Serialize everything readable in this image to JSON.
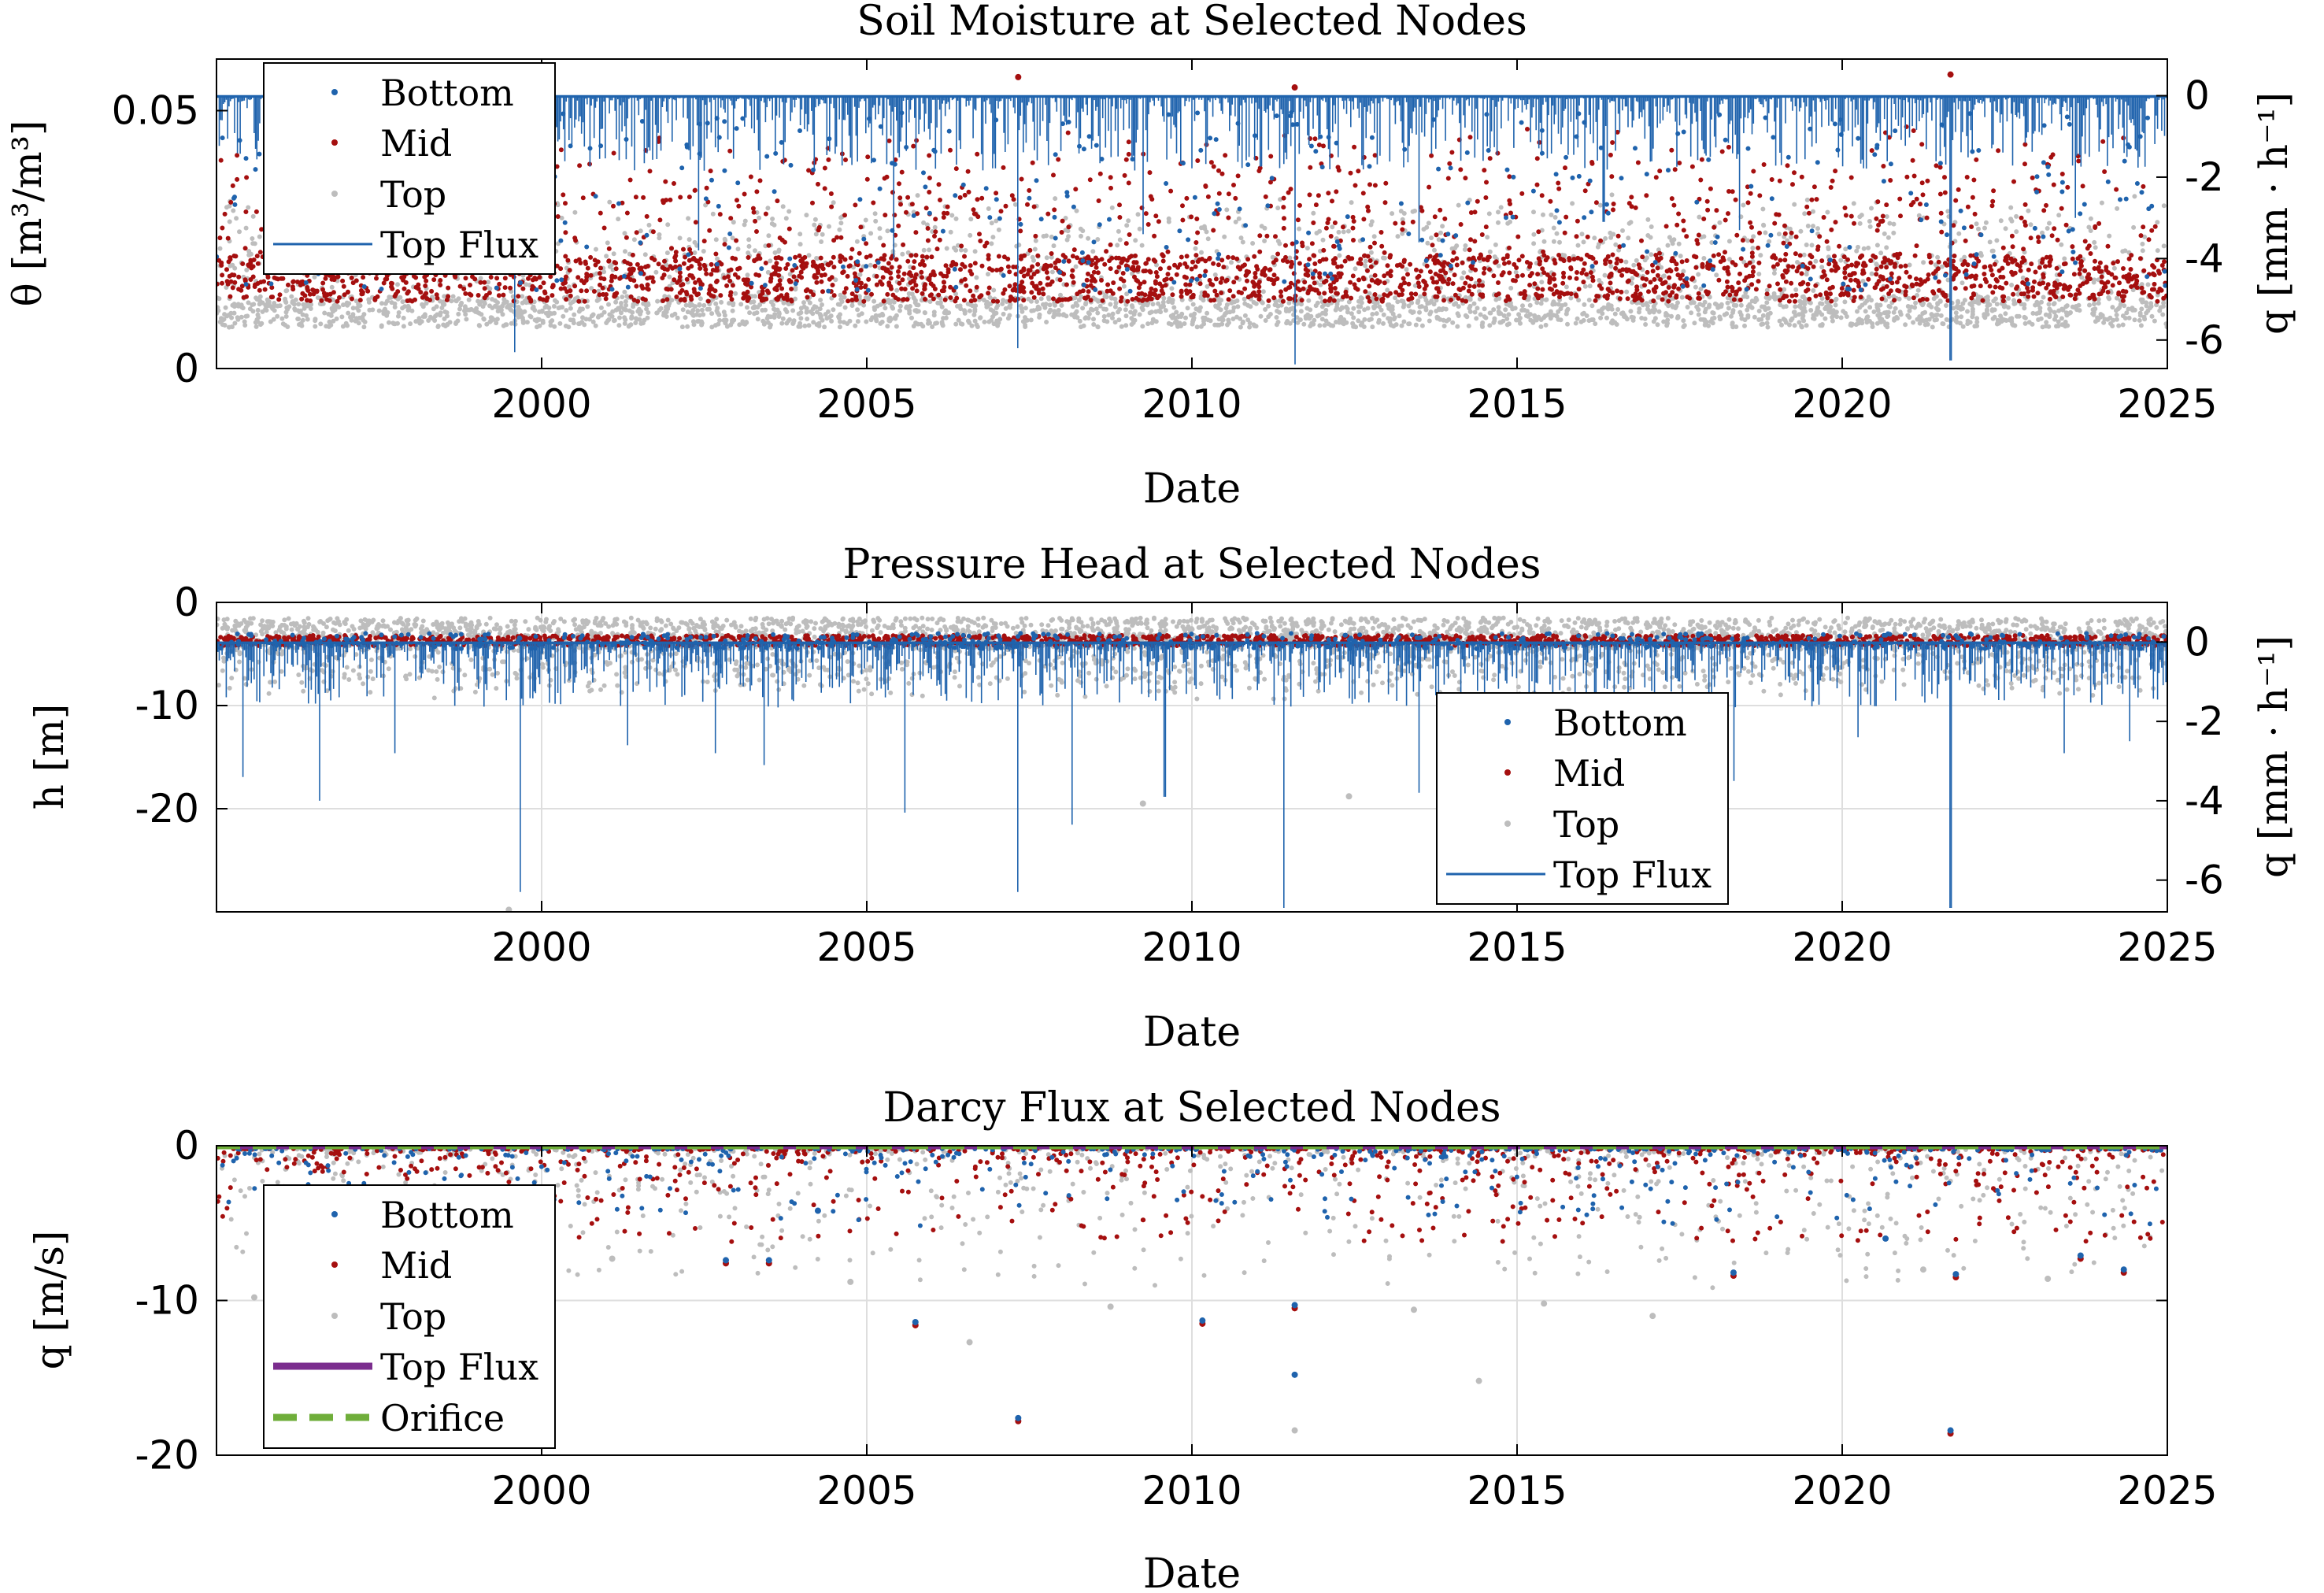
{
  "colors": {
    "bottom": "#1f63ad",
    "mid": "#a50f0f",
    "top": "#bdbdbd",
    "top_flux_line": "#1f63ad",
    "top_flux_thick": "#7b2d8e",
    "orifice": "#6fae3a",
    "grid": "#dedede",
    "axis": "#000000"
  },
  "chart_data": [
    {
      "type": "scatter",
      "title": "Soil Moisture at Selected Nodes",
      "xlabel": "Date",
      "ylabel": "θ [m³/m³]",
      "ylabel_right": "q [mm · h⁻¹]",
      "xlim": [
        "1995-01-01",
        "2025-01-01"
      ],
      "ylim": [
        0,
        0.06
      ],
      "ylim_right": [
        -6.7,
        0.9
      ],
      "x_ticks": [
        "2000",
        "2005",
        "2010",
        "2015",
        "2020",
        "2025"
      ],
      "y_ticks": [
        "0",
        "0.05"
      ],
      "y_ticks_right": [
        "0",
        "-2",
        "-4",
        "-6"
      ],
      "grid": false,
      "legend_position": "top-left",
      "legend": [
        "Bottom",
        "Mid",
        "Top",
        "Top Flux"
      ],
      "series": [
        {
          "name": "Bottom",
          "marker": "dot",
          "typical_range": [
            0.01,
            0.052
          ]
        },
        {
          "name": "Mid",
          "marker": "dot",
          "typical_range": [
            0.012,
            0.055
          ],
          "peaks": [
            [
              "2007-05-01",
              0.0565
            ],
            [
              "2011-08-01",
              0.0545
            ],
            [
              "2021-09-01",
              0.057
            ]
          ]
        },
        {
          "name": "Top",
          "marker": "dot",
          "typical_range": [
            0.006,
            0.035
          ]
        },
        {
          "name": "Top Flux",
          "axis": "right",
          "baseline": 0,
          "spikes": [
            [
              "1996-03-01",
              -3.2
            ],
            [
              "1999-08-01",
              -6.3
            ],
            [
              "2002-06-01",
              -3.8
            ],
            [
              "2005-06-01",
              -4.0
            ],
            [
              "2007-05-01",
              -6.2
            ],
            [
              "2009-04-01",
              -3.4
            ],
            [
              "2011-08-01",
              -6.6
            ],
            [
              "2013-07-01",
              -3.6
            ],
            [
              "2016-05-01",
              -3.1
            ],
            [
              "2018-06-01",
              -3.3
            ],
            [
              "2021-09-01",
              -6.5
            ],
            [
              "2023-08-01",
              -3.0
            ]
          ]
        }
      ]
    },
    {
      "type": "scatter",
      "title": "Pressure Head at Selected Nodes",
      "xlabel": "Date",
      "ylabel": "h [m]",
      "ylabel_right": "q [mm · h⁻¹]",
      "xlim": [
        "1995-01-01",
        "2025-01-01"
      ],
      "ylim": [
        -30,
        0
      ],
      "ylim_right": [
        -6.8,
        1.0
      ],
      "x_ticks": [
        "2000",
        "2005",
        "2010",
        "2015",
        "2020",
        "2025"
      ],
      "y_ticks": [
        "0",
        "-10",
        "-20"
      ],
      "y_ticks_right": [
        "0",
        "-2",
        "-4",
        "-6"
      ],
      "grid": true,
      "legend_position": "bottom-right",
      "legend": [
        "Bottom",
        "Mid",
        "Top",
        "Top Flux"
      ],
      "series": [
        {
          "name": "Bottom",
          "marker": "dot",
          "typical_range": [
            -5,
            -2
          ]
        },
        {
          "name": "Mid",
          "marker": "dot",
          "typical_range": [
            -4.5,
            -2
          ]
        },
        {
          "name": "Top",
          "marker": "dot",
          "typical_range": [
            -9,
            -1
          ],
          "outliers": [
            [
              "1999-07-01",
              -29.8
            ],
            [
              "2009-04-01",
              -19.5
            ],
            [
              "2012-06-01",
              -18.8
            ]
          ]
        },
        {
          "name": "Top Flux",
          "axis": "right",
          "baseline": 0,
          "spikes": [
            [
              "1995-06-01",
              -3.4
            ],
            [
              "1996-08-01",
              -4.0
            ],
            [
              "1997-10-01",
              -2.8
            ],
            [
              "1999-09-01",
              -6.3
            ],
            [
              "2001-05-01",
              -2.6
            ],
            [
              "2002-09-01",
              -2.8
            ],
            [
              "2003-06-01",
              -3.1
            ],
            [
              "2005-08-01",
              -4.3
            ],
            [
              "2007-05-01",
              -6.3
            ],
            [
              "2008-03-01",
              -4.6
            ],
            [
              "2009-08-01",
              -3.9
            ],
            [
              "2011-06-01",
              -6.7
            ],
            [
              "2013-07-01",
              -3.8
            ],
            [
              "2016-07-01",
              -3.0
            ],
            [
              "2018-05-01",
              -3.5
            ],
            [
              "2020-04-01",
              -2.4
            ],
            [
              "2021-09-01",
              -6.7
            ],
            [
              "2023-06-01",
              -2.8
            ],
            [
              "2024-06-01",
              -2.5
            ]
          ]
        }
      ]
    },
    {
      "type": "scatter",
      "title": "Darcy Flux at Selected Nodes",
      "xlabel": "Date",
      "ylabel": "q [m/s]",
      "xlim": [
        "1995-01-01",
        "2025-01-01"
      ],
      "ylim": [
        -20,
        0
      ],
      "x_ticks": [
        "2000",
        "2005",
        "2010",
        "2015",
        "2020",
        "2025"
      ],
      "y_ticks": [
        "0",
        "-10",
        "-20"
      ],
      "grid": true,
      "legend_position": "top-left",
      "legend": [
        "Bottom",
        "Mid",
        "Top",
        "Top Flux",
        "Orifice"
      ],
      "series": [
        {
          "name": "Bottom",
          "marker": "dot",
          "points": [
            [
              "2002-11-01",
              -7.4
            ],
            [
              "2003-07-01",
              -7.4
            ],
            [
              "2005-10-01",
              -11.4
            ],
            [
              "2007-05-01",
              -17.6
            ],
            [
              "2010-03-01",
              -11.3
            ],
            [
              "2011-08-01",
              -10.3
            ],
            [
              "2011-08-01",
              -14.8
            ],
            [
              "2018-05-01",
              -8.2
            ],
            [
              "2020-09-01",
              -6.0
            ],
            [
              "2021-09-01",
              -18.4
            ],
            [
              "2021-10-01",
              -8.3
            ],
            [
              "2023-09-01",
              -7.1
            ],
            [
              "2024-05-01",
              -8.0
            ],
            [
              "2004-04-01",
              -4.2
            ]
          ]
        },
        {
          "name": "Mid",
          "marker": "dot",
          "points": [
            [
              "2002-11-01",
              -7.6
            ],
            [
              "2003-07-01",
              -7.6
            ],
            [
              "2005-10-01",
              -11.6
            ],
            [
              "2007-05-01",
              -17.8
            ],
            [
              "2010-03-01",
              -11.5
            ],
            [
              "2011-08-01",
              -10.5
            ],
            [
              "2018-05-01",
              -8.4
            ],
            [
              "2021-09-01",
              -18.6
            ],
            [
              "2021-10-01",
              -8.5
            ],
            [
              "2023-09-01",
              -7.3
            ],
            [
              "2024-05-01",
              -8.2
            ]
          ]
        },
        {
          "name": "Top",
          "marker": "dot",
          "points": [
            [
              "1995-08-01",
              -9.8
            ],
            [
              "1999-10-01",
              -9.4
            ],
            [
              "2001-02-01",
              -7.3
            ],
            [
              "2004-10-01",
              -8.8
            ],
            [
              "2006-08-01",
              -12.7
            ],
            [
              "2008-10-01",
              -10.4
            ],
            [
              "2011-08-01",
              -18.4
            ],
            [
              "2013-06-01",
              -10.6
            ],
            [
              "2014-06-01",
              -15.2
            ],
            [
              "2015-06-01",
              -10.2
            ],
            [
              "2017-02-01",
              -11.0
            ],
            [
              "2021-04-01",
              -8.0
            ],
            [
              "2023-03-01",
              -8.6
            ]
          ]
        },
        {
          "name": "Top Flux",
          "style": "thick-line",
          "value": 0
        },
        {
          "name": "Orifice",
          "style": "dashed-line",
          "value": 0
        }
      ]
    }
  ]
}
